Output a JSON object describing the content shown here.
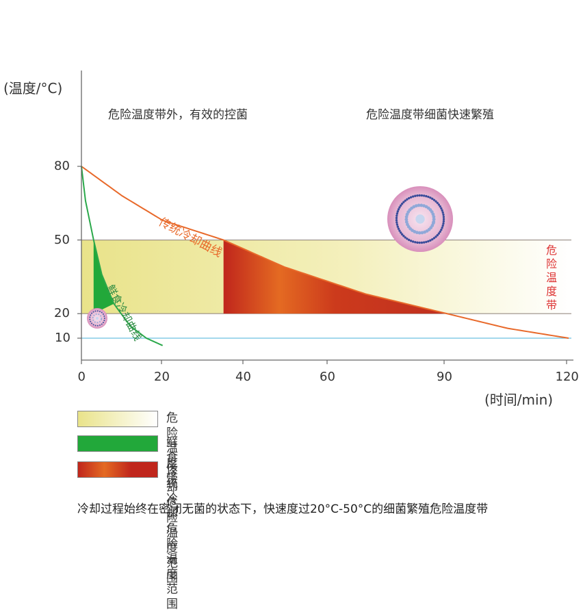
{
  "chart_data": {
    "type": "area",
    "ylabel": "(温度/°C)",
    "xlabel": "(时间/min)",
    "x_ticks": [
      0,
      20,
      40,
      60,
      90,
      120
    ],
    "y_ticks": [
      10,
      20,
      50,
      80
    ],
    "xlim": [
      0,
      120
    ],
    "danger_zone": {
      "label": "危险温度带",
      "from": 20,
      "to": 50
    },
    "reference_line": {
      "value": 10
    },
    "series": [
      {
        "name": "传统冷却曲线",
        "color": "#e8692a",
        "x": [
          0,
          10,
          20,
          35,
          50,
          70,
          90,
          105,
          120
        ],
        "y": [
          80,
          68,
          58,
          50,
          39,
          28,
          20,
          14,
          10
        ]
      },
      {
        "name": "鲜食冷却曲线",
        "color": "#2aa84a",
        "x": [
          0,
          1,
          3,
          5,
          8,
          12,
          16,
          20
        ],
        "y": [
          80,
          66,
          50,
          36,
          24,
          15,
          10,
          7
        ]
      }
    ],
    "annotations": {
      "left_region": "危险温度带外，有效的控菌",
      "right_region": "危险温度带细菌快速繁殖",
      "danger_vertical": "危险温度带"
    }
  },
  "legend": [
    {
      "label": "危险温度带",
      "swatch": "yellow"
    },
    {
      "label": "鲜食冷却危险温度范围",
      "swatch": "green"
    },
    {
      "label": "传统冷却危险温度范围",
      "swatch": "red"
    }
  ],
  "footer_text": "冷却过程始终在密闭无菌的状态下，快速度过20°C-50°C的细菌繁殖危险温度带",
  "colors": {
    "axis": "#666666",
    "traditional": "#e8692a",
    "fresh": "#2aa84a",
    "reference": "#6cc0e0",
    "danger_text": "#d33333"
  }
}
